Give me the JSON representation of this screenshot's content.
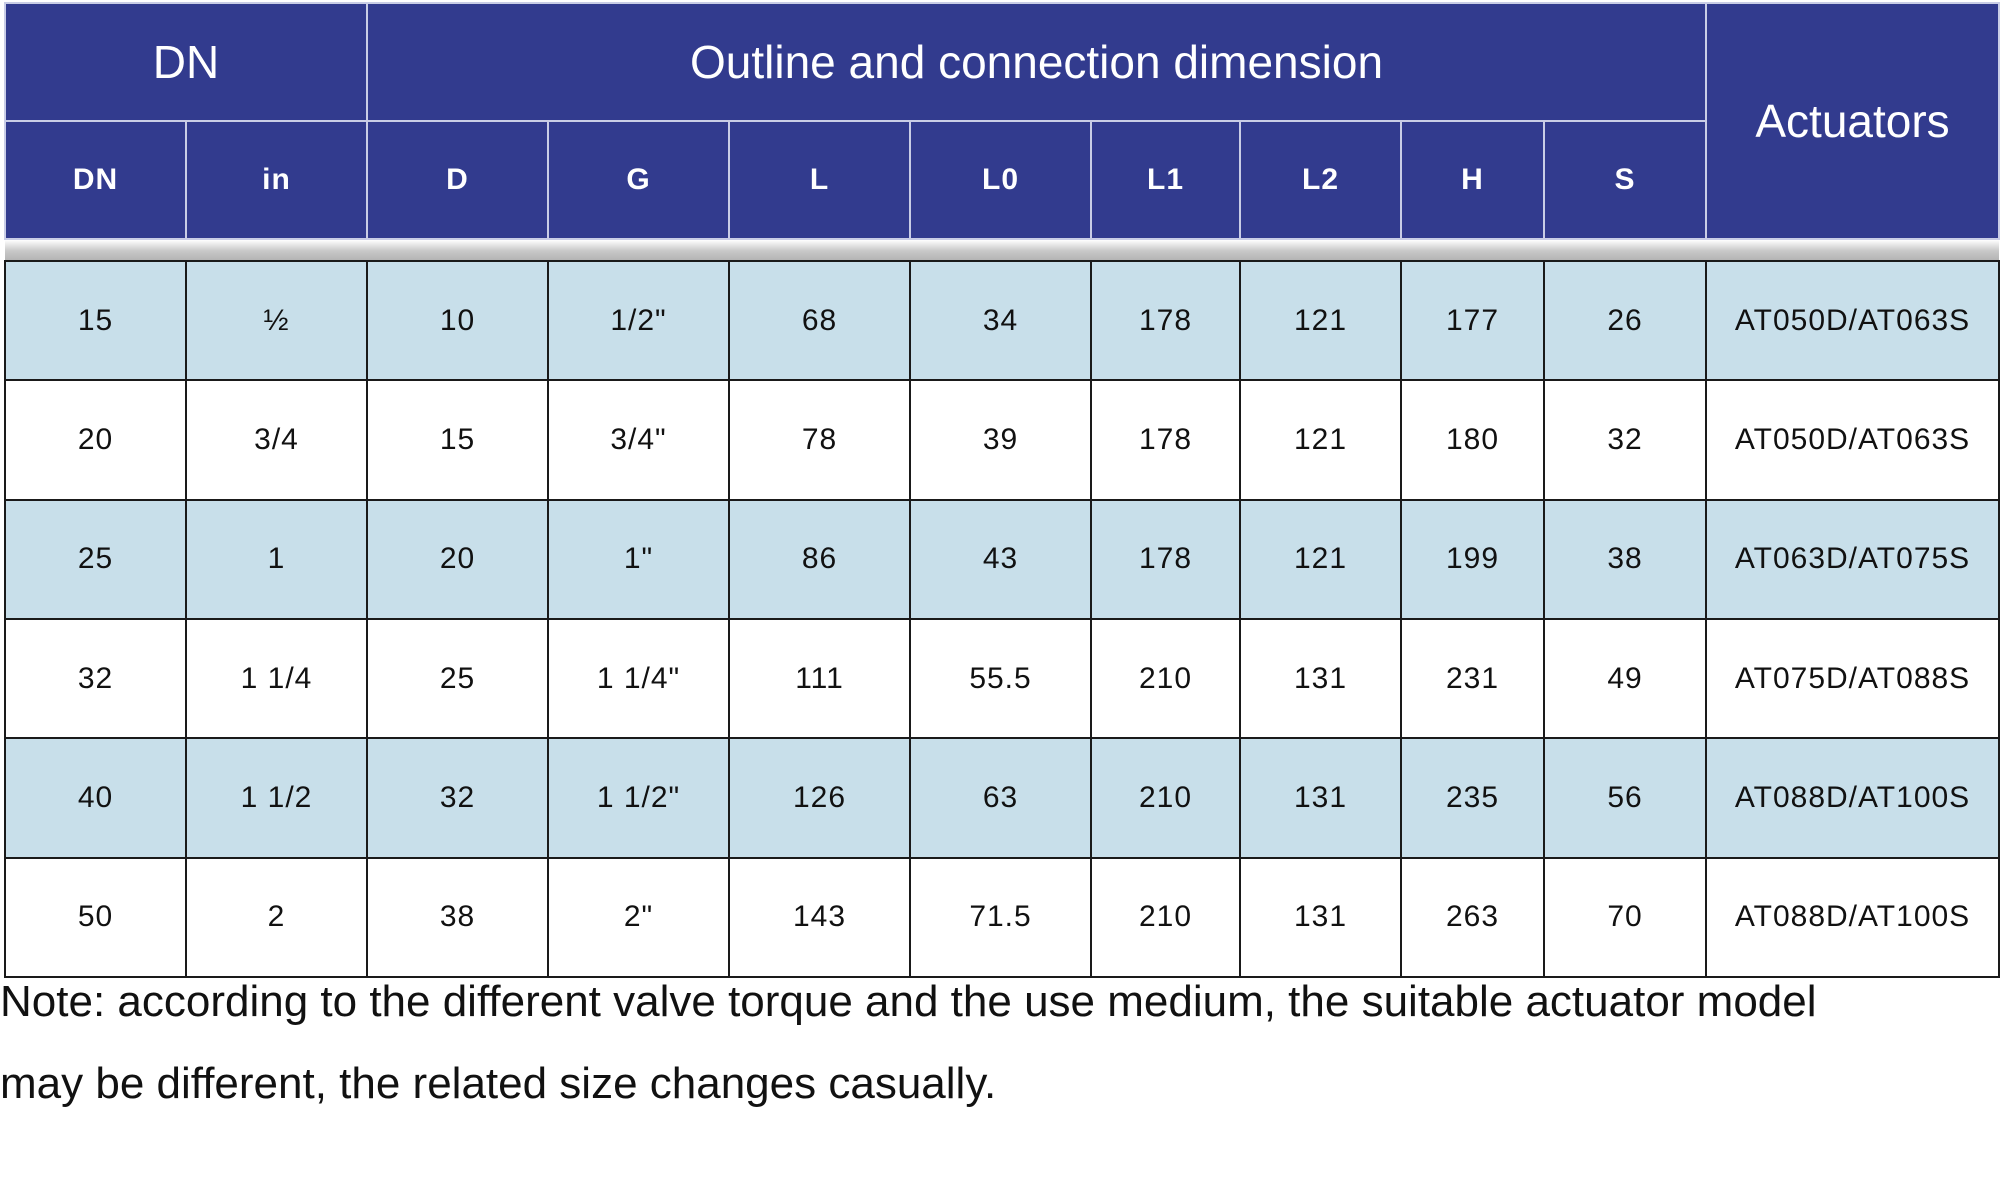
{
  "header": {
    "group_dn": "DN",
    "group_outline": "Outline and connection dimension",
    "actuators": "Actuators",
    "columns": [
      "DN",
      "in",
      "D",
      "G",
      "L",
      "L0",
      "L1",
      "L2",
      "H",
      "S"
    ]
  },
  "rows": [
    [
      "15",
      "½",
      "10",
      "1/2\"",
      "68",
      "34",
      "178",
      "121",
      "177",
      "26",
      "AT050D/AT063S"
    ],
    [
      "20",
      "3/4",
      "15",
      "3/4\"",
      "78",
      "39",
      "178",
      "121",
      "180",
      "32",
      "AT050D/AT063S"
    ],
    [
      "25",
      "1",
      "20",
      "1\"",
      "86",
      "43",
      "178",
      "121",
      "199",
      "38",
      "AT063D/AT075S"
    ],
    [
      "32",
      "1 1/4",
      "25",
      "1 1/4\"",
      "111",
      "55.5",
      "210",
      "131",
      "231",
      "49",
      "AT075D/AT088S"
    ],
    [
      "40",
      "1 1/2",
      "32",
      "1 1/2\"",
      "126",
      "63",
      "210",
      "131",
      "235",
      "56",
      "AT088D/AT100S"
    ],
    [
      "50",
      "2",
      "38",
      "2\"",
      "143",
      "71.5",
      "210",
      "131",
      "263",
      "70",
      "AT088D/AT100S"
    ]
  ],
  "note": {
    "line1": "Note: according to the different valve torque and the use medium, the suitable actuator model",
    "line2": "may be different, the related size changes casually."
  }
}
